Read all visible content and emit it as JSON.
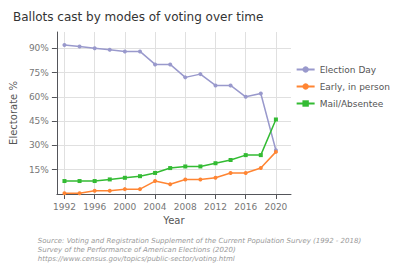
{
  "chart_data": {
    "type": "line",
    "title": "Ballots cast by modes of voting over time",
    "x_label": "Year",
    "y_label": "Electorate %",
    "annotations": [
      "Source: Voting and Registration Supplement of the Current Population Survey (1992 - 2018)\nSurvey of the Performance of American Elections (2020)\nhttps://www.census.gov/topics/public-sector/voting.html"
    ],
    "x": [
      1992,
      1994,
      1996,
      1998,
      2000,
      2002,
      2004,
      2006,
      2008,
      2010,
      2012,
      2014,
      2016,
      2018,
      2020
    ],
    "series": [
      {
        "name": "Election Day",
        "color": "#9999cc",
        "marker": "circle",
        "values": [
          92,
          91,
          90,
          89,
          88,
          88,
          80,
          80,
          72,
          74,
          67,
          67,
          60,
          62,
          27
        ]
      },
      {
        "name": "Early, in person",
        "color": "#ff8533",
        "marker": "circle",
        "values": [
          0.5,
          0.5,
          2,
          2,
          3,
          3,
          8,
          6,
          9,
          9,
          10,
          13,
          13,
          16,
          26
        ]
      },
      {
        "name": "Mail/Absentee",
        "color": "#33bb33",
        "marker": "square",
        "values": [
          8,
          8,
          8,
          9,
          10,
          11,
          13,
          16,
          17,
          17,
          19,
          21,
          24,
          24,
          46
        ]
      }
    ],
    "xlim": [
      1991,
      2022
    ],
    "xticks": [
      1992,
      1996,
      2000,
      2004,
      2008,
      2012,
      2016,
      2020
    ],
    "ylim": [
      0,
      100
    ],
    "yticks": [
      {
        "value": 15,
        "label": "15%"
      },
      {
        "value": 30,
        "label": "30%"
      },
      {
        "value": 45,
        "label": "45%"
      },
      {
        "value": 60,
        "label": "60%"
      },
      {
        "value": 75,
        "label": "75%"
      },
      {
        "value": 90,
        "label": "90%"
      }
    ],
    "grid": true,
    "legend": "right"
  }
}
